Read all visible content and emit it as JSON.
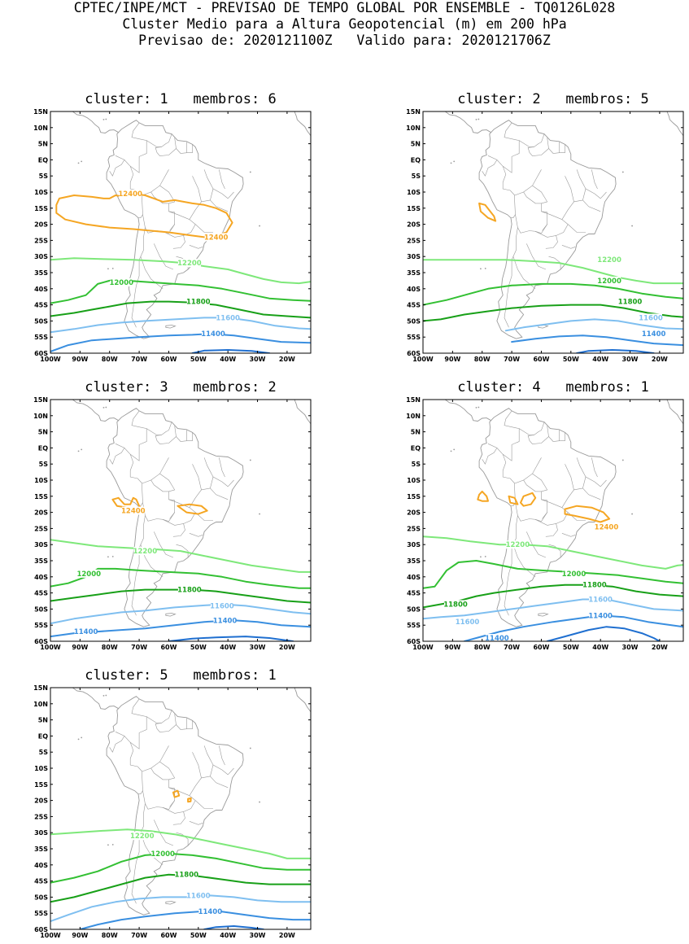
{
  "header": {
    "line1": "CPTEC/INPE/MCT - PREVISAO DE TEMPO GLOBAL POR ENSEMBLE - TQ0126L028",
    "line2": "Cluster Medio para a Altura Geopotencial (m) em 200 hPa",
    "line3": "Previsao de: 2020121100Z   Valido para: 2020121706Z"
  },
  "axes": {
    "lat_labels": [
      "15N",
      "10N",
      "5N",
      "EQ",
      "5S",
      "10S",
      "15S",
      "20S",
      "25S",
      "30S",
      "35S",
      "40S",
      "45S",
      "50S",
      "55S",
      "60S"
    ],
    "lon_labels": [
      "100W",
      "90W",
      "80W",
      "70W",
      "60W",
      "50W",
      "40W",
      "30W",
      "20W"
    ]
  },
  "colors": {
    "c12400": "#f5a623",
    "c12200": "#7ee87a",
    "c12000": "#33c033",
    "c11800": "#18a018",
    "c11600": "#7fbff0",
    "c11400": "#3a8fe0",
    "c11200": "#1f6fd0",
    "land": "#9a9a9a"
  },
  "panels": [
    {
      "title": "cluster: 1   membros: 6",
      "labels": [
        {
          "text": "12400",
          "lon": -73,
          "lat": -10.5,
          "color": "c12400"
        },
        {
          "text": "12400",
          "lon": -44,
          "lat": -24,
          "color": "c12400"
        },
        {
          "text": "12200",
          "lon": -53,
          "lat": -32,
          "color": "c12200"
        },
        {
          "text": "12000",
          "lon": -76,
          "lat": -38,
          "color": "c12000"
        },
        {
          "text": "11800",
          "lon": -50,
          "lat": -44,
          "color": "c11800"
        },
        {
          "text": "11600",
          "lon": -40,
          "lat": -49,
          "color": "c11600"
        },
        {
          "text": "11400",
          "lon": -45,
          "lat": -54,
          "color": "c11400"
        }
      ]
    },
    {
      "title": "cluster: 2   membros: 5",
      "labels": [
        {
          "text": "12200",
          "lon": -37,
          "lat": -31,
          "color": "c12200"
        },
        {
          "text": "12000",
          "lon": -37,
          "lat": -37.5,
          "color": "c12000"
        },
        {
          "text": "11800",
          "lon": -30,
          "lat": -44,
          "color": "c11800"
        },
        {
          "text": "11600",
          "lon": -23,
          "lat": -49,
          "color": "c11600"
        },
        {
          "text": "11400",
          "lon": -22,
          "lat": -54,
          "color": "c11400"
        }
      ]
    },
    {
      "title": "cluster: 3   membros: 2",
      "labels": [
        {
          "text": "12400",
          "lon": -72,
          "lat": -19.5,
          "color": "c12400"
        },
        {
          "text": "12200",
          "lon": -68,
          "lat": -32,
          "color": "c12200"
        },
        {
          "text": "12000",
          "lon": -87,
          "lat": -39,
          "color": "c12000"
        },
        {
          "text": "11800",
          "lon": -53,
          "lat": -44,
          "color": "c11800"
        },
        {
          "text": "11600",
          "lon": -42,
          "lat": -49,
          "color": "c11600"
        },
        {
          "text": "11400",
          "lon": -41,
          "lat": -53.5,
          "color": "c11400"
        },
        {
          "text": "11400",
          "lon": -88,
          "lat": -57,
          "color": "c11400"
        }
      ]
    },
    {
      "title": "cluster: 4   membros: 1",
      "labels": [
        {
          "text": "12400",
          "lon": -38,
          "lat": -24.5,
          "color": "c12400"
        },
        {
          "text": "12200",
          "lon": -68,
          "lat": -30,
          "color": "c12200"
        },
        {
          "text": "12000",
          "lon": -49,
          "lat": -39,
          "color": "c12000"
        },
        {
          "text": "11800",
          "lon": -42,
          "lat": -42.5,
          "color": "c11800"
        },
        {
          "text": "11800",
          "lon": -89,
          "lat": -48.5,
          "color": "c11800"
        },
        {
          "text": "11600",
          "lon": -40,
          "lat": -47,
          "color": "c11600"
        },
        {
          "text": "11600",
          "lon": -85,
          "lat": -54,
          "color": "c11600"
        },
        {
          "text": "11400",
          "lon": -40,
          "lat": -52,
          "color": "c11400"
        },
        {
          "text": "11400",
          "lon": -75,
          "lat": -59,
          "color": "c11400"
        }
      ]
    },
    {
      "title": "cluster: 5   membros: 1",
      "labels": [
        {
          "text": "12200",
          "lon": -69,
          "lat": -31,
          "color": "c12200"
        },
        {
          "text": "12000",
          "lon": -62,
          "lat": -36.5,
          "color": "c12000"
        },
        {
          "text": "11800",
          "lon": -54,
          "lat": -43,
          "color": "c11800"
        },
        {
          "text": "11600",
          "lon": -50,
          "lat": -49.5,
          "color": "c11600"
        },
        {
          "text": "11400",
          "lon": -46,
          "lat": -54.5,
          "color": "c11400"
        }
      ]
    }
  ]
}
